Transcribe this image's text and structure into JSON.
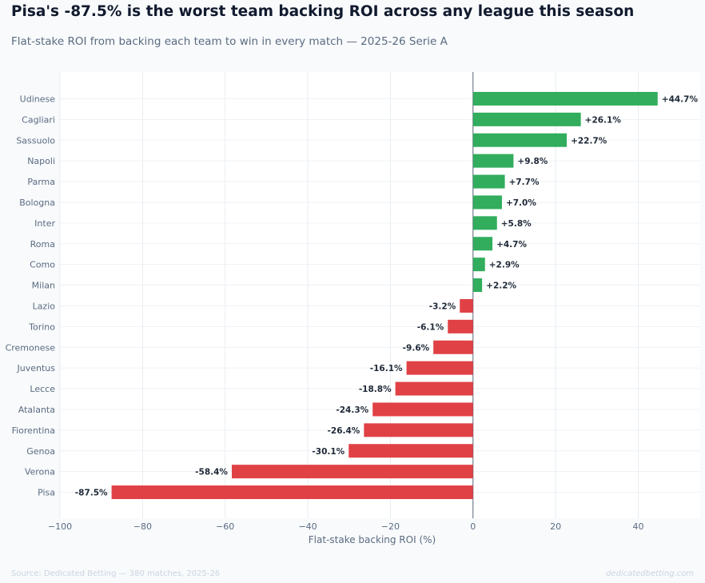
{
  "title": "Pisa's -87.5% is the worst team backing ROI across any league this season",
  "subtitle": "Flat-stake ROI from backing each team to win in every match — 2025-26 Serie A",
  "footer": {
    "source": "Source: Dedicated Betting — 380 matches, 2025-26",
    "brand": "dedicatedbetting.com"
  },
  "colors": {
    "positive": "#31ad5d",
    "negative": "#e04145",
    "background": "#f8fafc"
  },
  "chart_data": {
    "type": "bar",
    "orientation": "horizontal",
    "xlabel": "Flat-stake backing ROI (%)",
    "ylabel": "",
    "xlim": [
      -100,
      55
    ],
    "xticks": [
      -100,
      -80,
      -60,
      -40,
      -20,
      0,
      20,
      40
    ],
    "xtick_labels": [
      "−100",
      "−80",
      "−60",
      "−40",
      "−20",
      "0",
      "20",
      "40"
    ],
    "grid": true,
    "categories": [
      "Udinese",
      "Cagliari",
      "Sassuolo",
      "Napoli",
      "Parma",
      "Bologna",
      "Inter",
      "Roma",
      "Como",
      "Milan",
      "Lazio",
      "Torino",
      "Cremonese",
      "Juventus",
      "Lecce",
      "Atalanta",
      "Fiorentina",
      "Genoa",
      "Verona",
      "Pisa"
    ],
    "values": [
      44.7,
      26.1,
      22.7,
      9.8,
      7.7,
      7.0,
      5.8,
      4.7,
      2.9,
      2.2,
      -3.2,
      -6.1,
      -9.6,
      -16.1,
      -18.8,
      -24.3,
      -26.4,
      -30.1,
      -58.4,
      -87.5
    ],
    "value_labels": [
      "+44.7%",
      "+26.1%",
      "+22.7%",
      "+9.8%",
      "+7.7%",
      "+7.0%",
      "+5.8%",
      "+4.7%",
      "+2.9%",
      "+2.2%",
      "-3.2%",
      "-6.1%",
      "-9.6%",
      "-16.1%",
      "-18.8%",
      "-24.3%",
      "-26.4%",
      "-30.1%",
      "-58.4%",
      "-87.5%"
    ]
  }
}
